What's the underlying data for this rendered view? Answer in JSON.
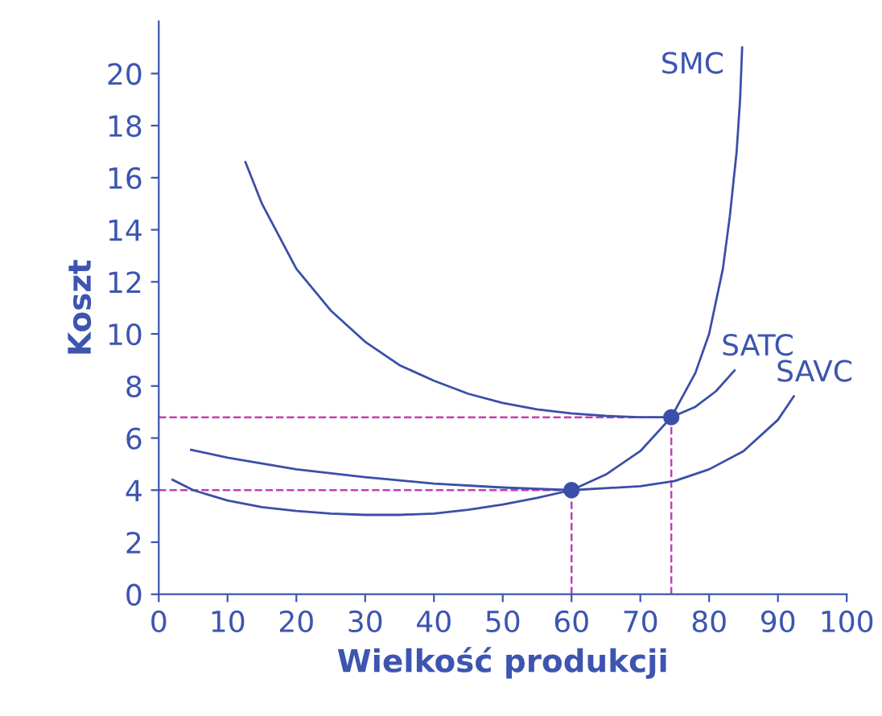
{
  "chart_data": {
    "type": "line",
    "xlabel": "Wielkość produkcji",
    "ylabel": "Koszt",
    "xlim": [
      0,
      100
    ],
    "ylim": [
      0,
      22
    ],
    "xticks": [
      0,
      10,
      20,
      30,
      40,
      50,
      60,
      70,
      80,
      90,
      100
    ],
    "yticks": [
      0,
      2,
      4,
      6,
      8,
      10,
      12,
      14,
      16,
      18,
      20
    ],
    "grid": false,
    "marker": "none",
    "series": [
      {
        "name": "SMC",
        "color": "#3b4fa8",
        "x": [
          2,
          5,
          10,
          15,
          20,
          25,
          30,
          35,
          40,
          45,
          50,
          55,
          60,
          65,
          70,
          74.5,
          78,
          80,
          82,
          83,
          84,
          84.5,
          84.8
        ],
        "values": [
          4.4,
          4.0,
          3.6,
          3.35,
          3.2,
          3.1,
          3.05,
          3.05,
          3.1,
          3.25,
          3.45,
          3.7,
          4.0,
          4.6,
          5.5,
          6.8,
          8.5,
          10,
          12.5,
          14.5,
          17,
          19,
          21
        ]
      },
      {
        "name": "SATC",
        "color": "#3b4fa8",
        "x": [
          12.6,
          15,
          20,
          25,
          30,
          35,
          40,
          45,
          50,
          55,
          60,
          65,
          70,
          74.5,
          78,
          81,
          83.7
        ],
        "values": [
          16.6,
          15.0,
          12.5,
          10.9,
          9.7,
          8.8,
          8.2,
          7.7,
          7.35,
          7.1,
          6.95,
          6.85,
          6.8,
          6.8,
          7.2,
          7.8,
          8.6
        ]
      },
      {
        "name": "SAVC",
        "color": "#3b4fa8",
        "x": [
          4.7,
          10,
          20,
          30,
          40,
          50,
          60,
          70,
          75,
          80,
          85,
          90,
          92.3
        ],
        "values": [
          5.55,
          5.25,
          4.8,
          4.5,
          4.25,
          4.1,
          4.0,
          4.15,
          4.35,
          4.8,
          5.5,
          6.7,
          7.6
        ]
      },
      {
        "type": "scatter",
        "marker": "circle",
        "color": "#3b4fa8",
        "x": [
          60,
          74.5
        ],
        "values": [
          4.0,
          6.8
        ]
      }
    ],
    "ref_lines": [
      {
        "axis": "y",
        "value": 6.8,
        "color": "#c23fb5",
        "line_style": "dashed"
      },
      {
        "axis": "x",
        "value": 74.5,
        "color": "#c23fb5",
        "line_style": "dashed"
      },
      {
        "axis": "y",
        "value": 4.0,
        "color": "#c23fb5",
        "line_style": "dashed"
      },
      {
        "axis": "x",
        "value": 60,
        "color": "#c23fb5",
        "line_style": "dashed"
      }
    ]
  }
}
